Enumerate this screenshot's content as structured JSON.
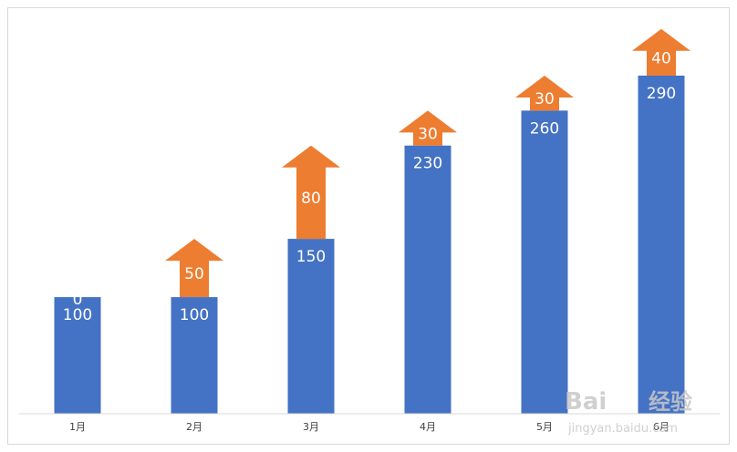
{
  "chart_data": {
    "type": "bar",
    "stacked": true,
    "categories": [
      "1月",
      "2月",
      "3月",
      "4月",
      "5月",
      "6月"
    ],
    "series": [
      {
        "values": [
          100,
          100,
          150,
          230,
          260,
          290
        ],
        "color": "#4472C4",
        "marker": "bar"
      },
      {
        "values": [
          0,
          50,
          80,
          30,
          30,
          40
        ],
        "color": "#ED7D31",
        "marker": "up-arrow"
      }
    ],
    "ylim": [
      0,
      340
    ],
    "grid": false,
    "legend": "none",
    "title": "",
    "xlabel": "",
    "ylabel": ""
  },
  "watermark": {
    "brand": "Bai",
    "brand2": "经验",
    "url": "jingyan.baidu.com"
  }
}
